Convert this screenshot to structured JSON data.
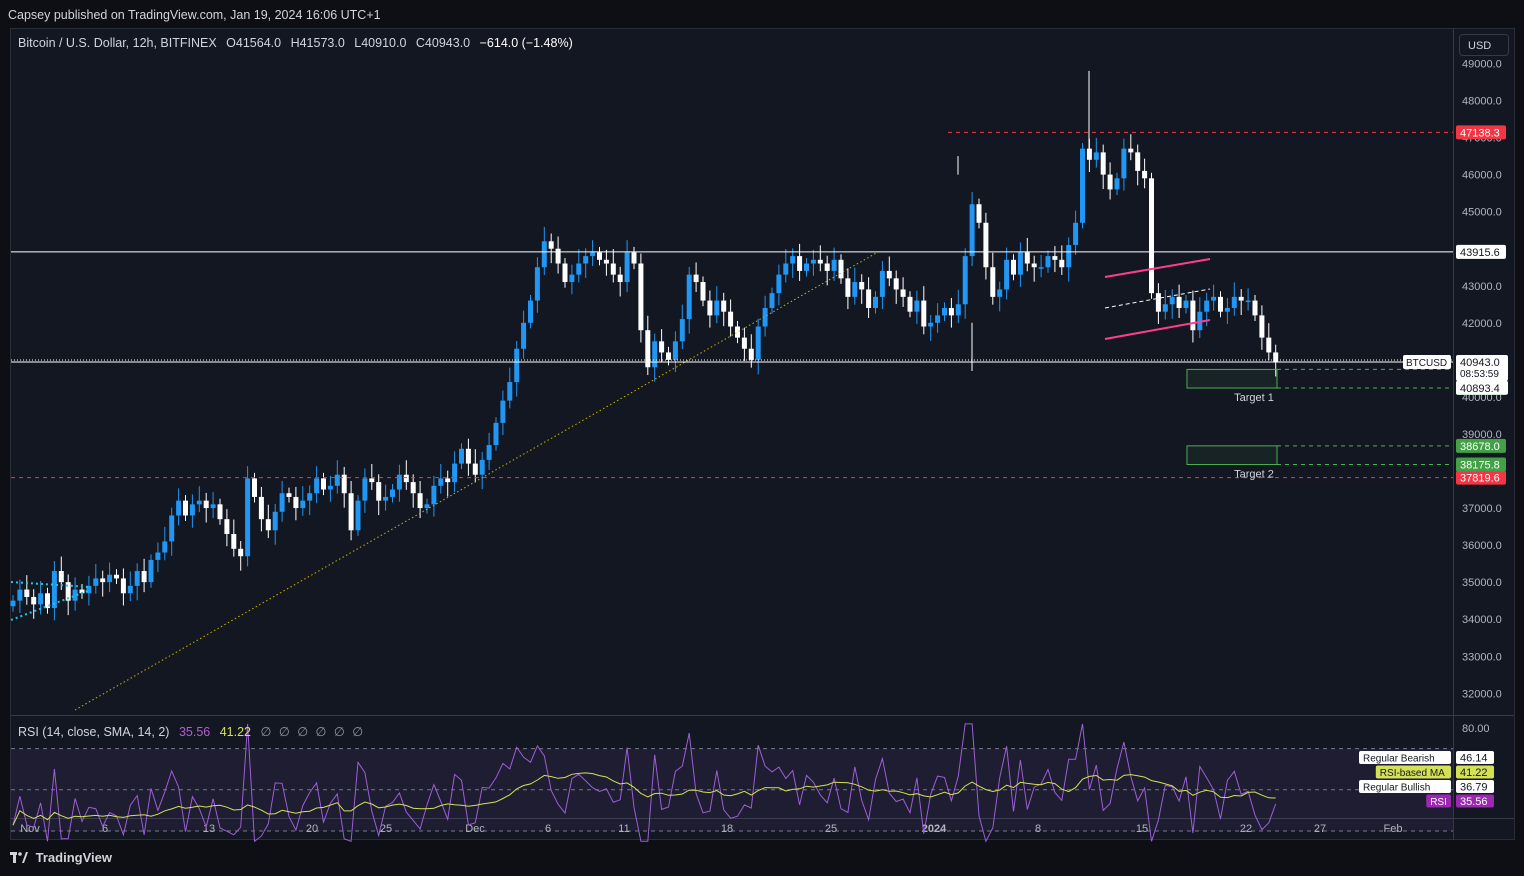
{
  "publisher_line": "Capsey published on TradingView.com, Jan 19, 2024 16:06 UTC+1",
  "legend": {
    "symbol": "Bitcoin / U.S. Dollar, 12h, BITFINEX",
    "open": "O41564.0",
    "high": "H41573.0",
    "low": "L40910.0",
    "close": "C40943.0",
    "change": "−614.0 (−1.48%)"
  },
  "rsi_legend": {
    "label": "RSI (14, close, SMA, 14, 2)",
    "rsi_value": "35.56",
    "ma_value": "41.22",
    "placeholders": "∅ ∅ ∅ ∅ ∅ ∅"
  },
  "currency_button": "USD",
  "footer_brand": "TradingView",
  "colors": {
    "bull": "#2196f3",
    "bear": "#ffffff",
    "background": "#131722",
    "red_level": "#f23645",
    "green_zone": "#4caf50",
    "channel": "#ff3d8f",
    "rsi_line": "#9c5fd6",
    "rsi_ma": "#d4e157"
  },
  "chart_data": {
    "type": "candlestick",
    "interval": "12h",
    "y_ticks": [
      32000,
      33000,
      34000,
      35000,
      36000,
      37000,
      38000,
      39000,
      40000,
      41000,
      42000,
      43000,
      44000,
      45000,
      46000,
      47000,
      48000,
      49000
    ],
    "y_tick_labels": [
      "32000.0",
      "33000.0",
      "34000.0",
      "35000.0",
      "36000.0",
      "37000.0",
      "38000.0",
      "39000.0",
      "40000.0",
      "41000.0",
      "42000.0",
      "43000.0",
      "44000.0",
      "45000.0",
      "46000.0",
      "47000.0",
      "48000.0",
      "49000.0"
    ],
    "x_ticks": [
      "Nov",
      "6",
      "13",
      "20",
      "25",
      "Dec",
      "6",
      "11",
      "18",
      "25",
      "2024",
      "8",
      "15",
      "22",
      "27",
      "Feb"
    ],
    "closes": [
      34500,
      34800,
      34600,
      34400,
      34700,
      34300,
      35300,
      35000,
      34500,
      34800,
      34700,
      34900,
      35100,
      35000,
      35200,
      35100,
      34700,
      34900,
      35300,
      35000,
      35600,
      35800,
      36100,
      36800,
      37200,
      36800,
      37100,
      37200,
      37000,
      37100,
      36700,
      36300,
      35900,
      35700,
      37800,
      37300,
      36700,
      36400,
      36900,
      37400,
      37300,
      37000,
      37200,
      37400,
      37800,
      37500,
      37600,
      37900,
      37400,
      36400,
      37200,
      37800,
      37700,
      37200,
      37300,
      37500,
      37900,
      37700,
      37400,
      37000,
      37100,
      37600,
      37800,
      37700,
      38200,
      38600,
      38200,
      37900,
      38300,
      38700,
      39300,
      39900,
      40400,
      41300,
      42000,
      42600,
      43500,
      44200,
      44000,
      43600,
      43100,
      43300,
      43600,
      43800,
      43900,
      43700,
      43600,
      43300,
      43100,
      43900,
      43600,
      41800,
      40800,
      41500,
      41200,
      41000,
      41500,
      42100,
      43300,
      43100,
      42600,
      42200,
      42600,
      42300,
      41900,
      41600,
      41300,
      41000,
      41900,
      42400,
      42800,
      43300,
      43600,
      43800,
      43400,
      43600,
      43700,
      43600,
      43400,
      43700,
      43200,
      42700,
      43100,
      42900,
      42400,
      42700,
      43400,
      43200,
      42900,
      42700,
      42300,
      42600,
      41900,
      42000,
      42200,
      42400,
      42200,
      42500,
      43800,
      45200,
      44700,
      43500,
      42700,
      42900,
      43700,
      43300,
      43900,
      43600,
      43500,
      43500,
      43800,
      43700,
      43500,
      44100,
      44700,
      46700,
      46400,
      46600,
      46000,
      45600,
      45900,
      46700,
      46600,
      46100,
      45900,
      42800,
      42300,
      42500,
      42700,
      42400,
      42600,
      41800,
      42300,
      42600,
      42700,
      42300,
      42400,
      42700,
      42600,
      42600,
      42200,
      41600,
      41200,
      40943
    ],
    "wicks": [
      {
        "x": 1089,
        "high": 48800
      },
      {
        "x": 972,
        "low": 40700
      },
      {
        "x": 958,
        "high": 46000
      }
    ],
    "horizontal_levels": [
      {
        "value": 43915.6,
        "label": "43915.6",
        "style": "solid",
        "color": "#ffffff"
      },
      {
        "value": 47138.3,
        "label": "47138.3",
        "style": "dashed",
        "color": "#f23645"
      },
      {
        "value": 37819.6,
        "label": "37819.6",
        "style": "dashed",
        "color": "#f23645"
      },
      {
        "value": 40742.2,
        "label": "40742.2",
        "style": "dashed",
        "color": "#4caf50"
      },
      {
        "value": 40240.1,
        "label": "40240.1",
        "style": "dashed",
        "color": "#4caf50"
      },
      {
        "value": 38678.0,
        "label": "38678.0",
        "style": "dashed",
        "color": "#4caf50"
      },
      {
        "value": 38175.8,
        "label": "38175.8",
        "style": "dashed",
        "color": "#4caf50"
      }
    ],
    "last_price": {
      "value": 40943.0,
      "label": "40943.0",
      "countdown": "08:53:59",
      "symbol_tag": "BTCUSD"
    },
    "crosshair_price": {
      "value": 40893.4,
      "label": "40893.4"
    },
    "target_zones": [
      {
        "label": "Target 1",
        "top": 40742.2,
        "bottom": 40240.1
      },
      {
        "label": "Target 2",
        "top": 38678.0,
        "bottom": 38175.8
      }
    ],
    "rsi": {
      "y_ticks": [
        80
      ],
      "y_tick_labels": [
        "80.00"
      ],
      "levels": [
        {
          "name": "Regular Bearish",
          "value": "46.14"
        },
        {
          "name": "RSI-based MA",
          "value": "41.22"
        },
        {
          "name": "Regular Bullish",
          "value": "36.79"
        },
        {
          "name": "RSI",
          "value": "35.56"
        }
      ]
    }
  }
}
